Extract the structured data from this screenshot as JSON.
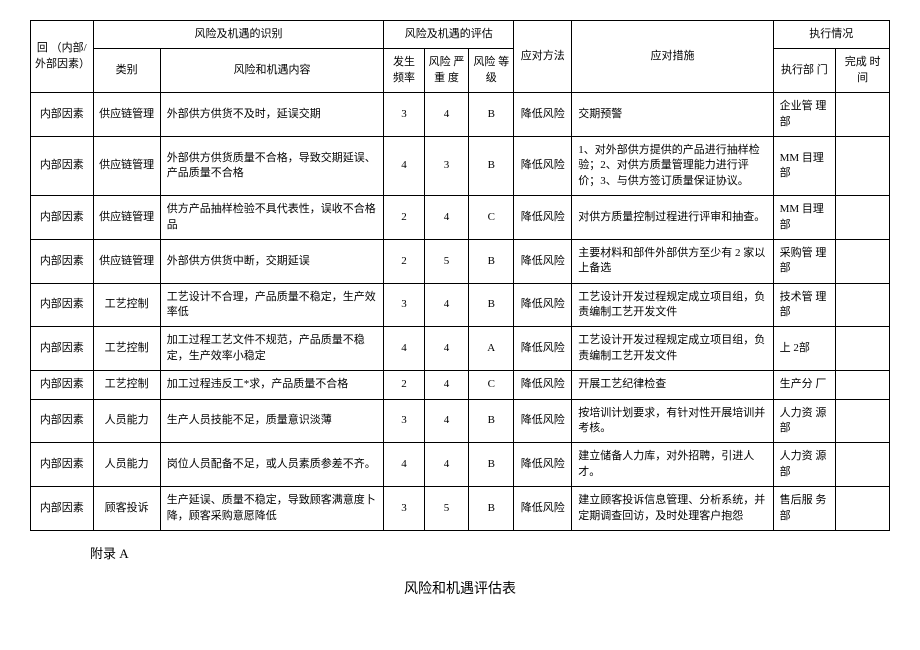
{
  "headers": {
    "factor": "回 （内部/外部因素）",
    "identify_group": "风险及机遇的识别",
    "category": "类别",
    "content": "风险和机遇内容",
    "eval_group": "风险及机遇的评估",
    "frequency": "发生 频率",
    "severity": "风险 严重 度",
    "level": "风险 等级",
    "method": "应对方法",
    "measure": "应对措施",
    "exec_group": "执行情况",
    "dept": "执行部 门",
    "time": "完成 时间"
  },
  "rows": [
    {
      "factor": "内部因素",
      "category": "供应链管理",
      "content": "外部供方供货不及时，延误交期",
      "freq": "3",
      "sev": "4",
      "lvl": "B",
      "method": "降低风险",
      "measure": "交期预警",
      "dept": "企业管 理部",
      "time": ""
    },
    {
      "factor": "内部因素",
      "category": "供应链管理",
      "content": "外部供方供货质量不合格，导致交期延误、 产品质量不合格",
      "freq": "4",
      "sev": "3",
      "lvl": "B",
      "method": "降低风险",
      "measure": "1、对外部供方提供的产品进行抽样检 验；2、对供方质量管理能力进行评价；3、与供方签订质量保证协议。",
      "dept": "MM 目理部",
      "time": ""
    },
    {
      "factor": "内部因素",
      "category": "供应链管理",
      "content": "供方产品抽样检验不具代表性，误收不合格 品",
      "freq": "2",
      "sev": "4",
      "lvl": "C",
      "method": "降低风险",
      "measure": "对供方质量控制过程进行评审和抽查。",
      "dept": "MM 目理部",
      "time": ""
    },
    {
      "factor": "内部因素",
      "category": "供应链管理",
      "content": "外部供方供货中断，交期延误",
      "freq": "2",
      "sev": "5",
      "lvl": "B",
      "method": "降低风险",
      "measure": "主要材料和部件外部供方至少有 2 家以上备选",
      "dept": "采购管 理部",
      "time": ""
    },
    {
      "factor": "内部因素",
      "category": "工艺控制",
      "content": "工艺设计不合理，产品质量不稳定，生产效 率低",
      "freq": "3",
      "sev": "4",
      "lvl": "B",
      "method": "降低风险",
      "measure": "工艺设计开发过程规定成立项目组，负 责编制工艺开发文件",
      "dept": "技术管 理部",
      "time": ""
    },
    {
      "factor": "内部因素",
      "category": "工艺控制",
      "content": "加工过程工艺文件不规范，产品质量不稳 定，生产效率小稳定",
      "freq": "4",
      "sev": "4",
      "lvl": "A",
      "method": "降低风险",
      "measure": "工艺设计开发过程规定成立项目组，负 责编制工艺开发文件",
      "dept": "上 2部",
      "time": ""
    },
    {
      "factor": "内部因素",
      "category": "工艺控制",
      "content": "加工过程违反工*求，产品质量不合格",
      "freq": "2",
      "sev": "4",
      "lvl": "C",
      "method": "降低风险",
      "measure": "开展工艺纪律检查",
      "dept": "生产分 厂",
      "time": ""
    },
    {
      "factor": "内部因素",
      "category": "人员能力",
      "content": "生产人员技能不足，质量意识淡薄",
      "freq": "3",
      "sev": "4",
      "lvl": "B",
      "method": "降低风险",
      "measure": "按培训计划要求，有针对性开展培训并 考核。",
      "dept": "人力资 源部",
      "time": ""
    },
    {
      "factor": "内部因素",
      "category": "人员能力",
      "content": "岗位人员配备不足，或人员素质参差不齐。",
      "freq": "4",
      "sev": "4",
      "lvl": "B",
      "method": "降低风险",
      "measure": "建立储备人力库，对外招聘，引进人才。",
      "dept": "人力资 源部",
      "time": ""
    },
    {
      "factor": "内部因素",
      "category": "顾客投诉",
      "content": "生产延误、质量不稳定，导致顾客满意度卜 降，顾客采购意愿降低",
      "freq": "3",
      "sev": "5",
      "lvl": "B",
      "method": "降低风险",
      "measure": "建立顾客投诉信息管理、分析系统，并 定期调查回访，及时处理客户抱怨",
      "dept": "售后服 务部",
      "time": ""
    }
  ],
  "appendix_label": "附录 A",
  "title": "风险和机遇评估表"
}
